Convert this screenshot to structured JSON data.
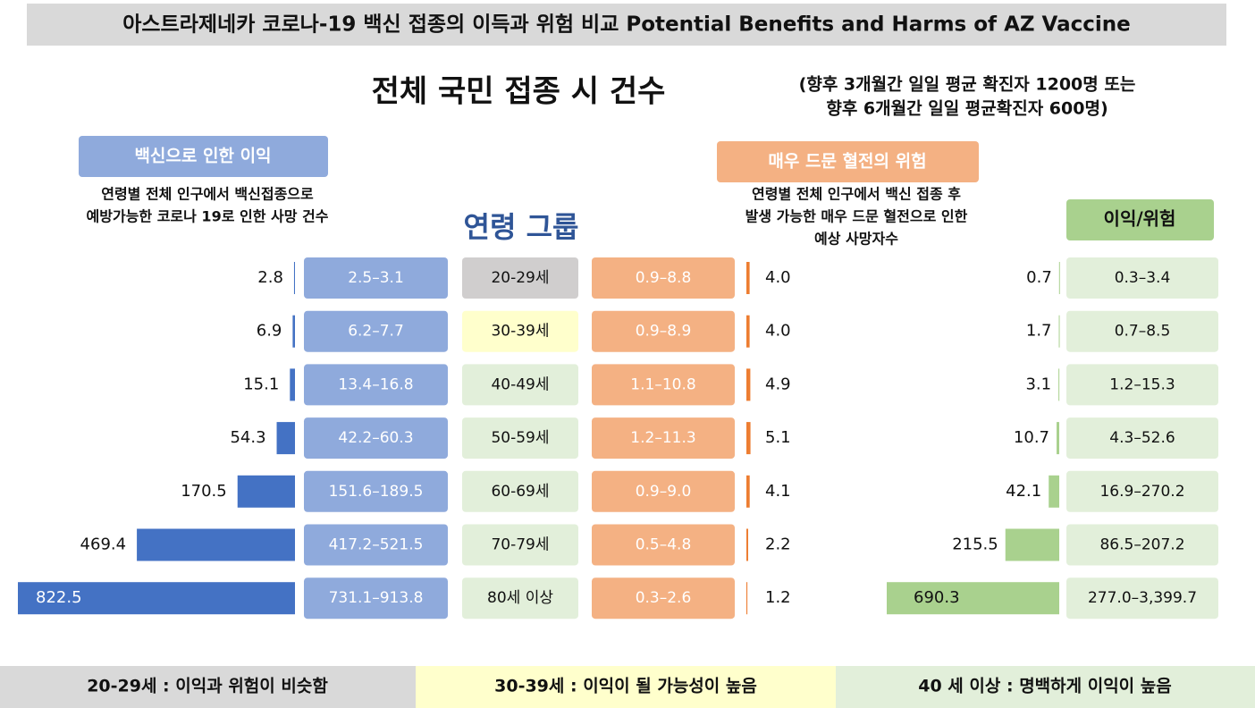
{
  "header": {
    "title": "아스트라제네카 코로나-19 백신 접종의 이득과 위험 비교 Potential Benefits and Harms of AZ Vaccine"
  },
  "subtitle": "전체 국민 접종 시 건수",
  "note": [
    "(향후 3개월간 일일 평균 확진자 1200명 또는",
    "향후 6개월간 일일 평균확진자 600명)"
  ],
  "benefit": {
    "label": "백신으로 인한 이익",
    "description": [
      "연령별 전체 인구에서 백신접종으로",
      "예방가능한 코로나 19로 인한 사망 건수"
    ],
    "color": "#4472c4",
    "values": [
      2.8,
      6.9,
      15.1,
      54.3,
      170.5,
      469.4,
      822.5
    ],
    "ranges": [
      "2.5–3.1",
      "6.2–7.7",
      "13.4–16.8",
      "42.2–60.3",
      "151.6–189.5",
      "417.2–521.5",
      "731.1–913.8"
    ]
  },
  "age_group": {
    "label": "연령 그룹",
    "categories": [
      "20-29세",
      "30-39세",
      "40-49세",
      "50-59세",
      "60-69세",
      "70-79세",
      "80세 이상"
    ],
    "colors": [
      "#d0cece",
      "#ffffcc",
      "#e2efda",
      "#e2efda",
      "#e2efda",
      "#e2efda",
      "#e2efda"
    ]
  },
  "harm": {
    "label": "매우 드문 혈전의 위험",
    "description": [
      "연령별 전체 인구에서 백신 접종 후",
      "발생 가능한 매우 드문 혈전으로 인한",
      "예상 사망자수"
    ],
    "color": "#ed7d31",
    "values": [
      4.0,
      4.0,
      4.9,
      5.1,
      4.1,
      2.2,
      1.2
    ],
    "value_labels": [
      "4.0",
      "4.0",
      "4.9",
      "5.1",
      "4.1",
      "2.2",
      "1.2"
    ],
    "ranges": [
      "0.9–8.8",
      "0.9–8.9",
      "1.1–10.8",
      "1.2–11.3",
      "0.9–9.0",
      "0.5–4.8",
      "0.3–2.6"
    ]
  },
  "ratio": {
    "label": "이익/위험",
    "color": "#a9d18e",
    "values": [
      0.7,
      1.7,
      3.1,
      10.7,
      42.1,
      215.5,
      690.3
    ],
    "ranges": [
      "0.3–3.4",
      "0.7–8.5",
      "1.2–15.3",
      "4.3–52.6",
      "16.9–270.2",
      "86.5–207.2",
      "277.0–3,399.7"
    ]
  },
  "footer": [
    "20-29세 : 이익과 위험이 비슷함",
    "30-39세 : 이익이 될 가능성이 높음",
    "40 세 이상 : 명백하게 이익이 높음"
  ]
}
